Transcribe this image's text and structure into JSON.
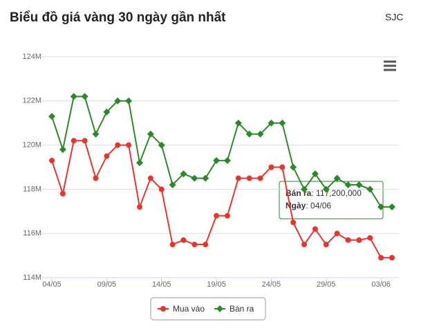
{
  "chart_data": {
    "type": "line",
    "title": "Biểu đồ giá vàng 30 ngày gần nhất",
    "subtitle": "SJC",
    "categories": [
      "04/05",
      null,
      null,
      null,
      null,
      "09/05",
      null,
      null,
      null,
      null,
      "14/05",
      null,
      null,
      null,
      null,
      "19/05",
      null,
      null,
      null,
      null,
      "24/05",
      null,
      null,
      null,
      null,
      "29/05",
      null,
      null,
      null,
      null,
      "03/06",
      null
    ],
    "ylim": [
      114000000,
      124000000
    ],
    "yticks": [
      {
        "value": 114000000,
        "label": "114M"
      },
      {
        "value": 116000000,
        "label": "116M"
      },
      {
        "value": 118000000,
        "label": "118M"
      },
      {
        "value": 120000000,
        "label": "120M"
      },
      {
        "value": 122000000,
        "label": "122M"
      },
      {
        "value": 124000000,
        "label": "124M"
      }
    ],
    "grid": true,
    "series": [
      {
        "name": "Mua vào",
        "color": "#e8352b",
        "marker": "circle",
        "values": [
          119300000,
          117800000,
          120200000,
          120200000,
          118500000,
          119500000,
          120000000,
          120000000,
          117200000,
          118500000,
          118000000,
          115500000,
          115700000,
          115500000,
          115500000,
          116800000,
          116800000,
          118500000,
          118500000,
          118500000,
          119000000,
          119000000,
          116500000,
          115500000,
          116200000,
          115500000,
          116000000,
          115700000,
          115700000,
          115800000,
          114900000,
          114900000
        ]
      },
      {
        "name": "Bán ra",
        "color": "#2a8a2a",
        "marker": "diamond",
        "values": [
          121300000,
          119800000,
          122200000,
          122200000,
          120500000,
          121500000,
          122000000,
          122000000,
          119200000,
          120500000,
          120000000,
          118200000,
          118700000,
          118500000,
          118500000,
          119300000,
          119300000,
          121000000,
          120500000,
          120500000,
          121000000,
          121000000,
          119000000,
          118000000,
          118700000,
          118000000,
          118500000,
          118200000,
          118200000,
          118000000,
          117200000,
          117200000
        ]
      }
    ],
    "tooltip": {
      "x_label": "Ngày",
      "date": "04/06",
      "value": 117200000,
      "value_label": "117,200,000"
    }
  }
}
